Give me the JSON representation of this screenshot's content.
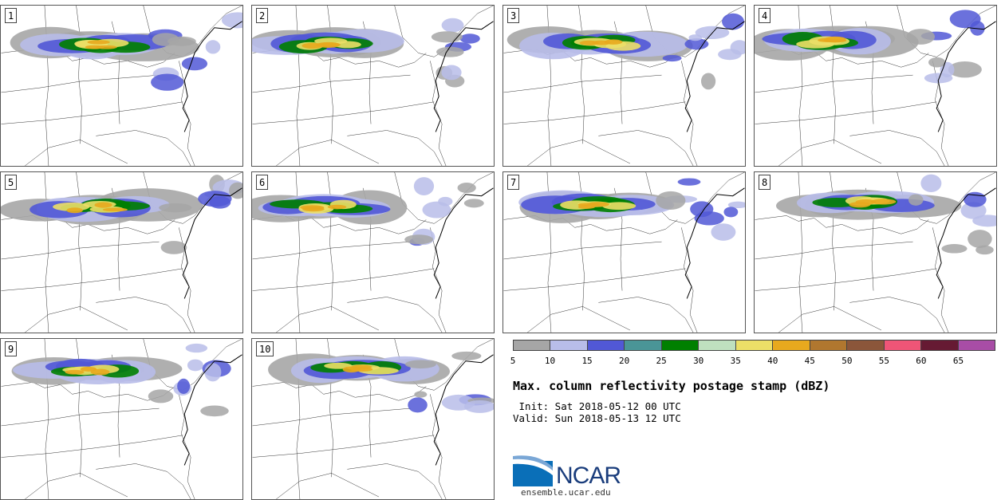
{
  "panels": [
    {
      "id": "p1",
      "label": "1"
    },
    {
      "id": "p2",
      "label": "2"
    },
    {
      "id": "p3",
      "label": "3"
    },
    {
      "id": "p4",
      "label": "4"
    },
    {
      "id": "p5",
      "label": "5"
    },
    {
      "id": "p6",
      "label": "6"
    },
    {
      "id": "p7",
      "label": "7"
    },
    {
      "id": "p8",
      "label": "8"
    },
    {
      "id": "p9",
      "label": "9"
    },
    {
      "id": "p10",
      "label": "10"
    }
  ],
  "colorbar": {
    "colors": [
      "#a6a6a6",
      "#b8bde9",
      "#5158d6",
      "#4a9597",
      "#008000",
      "#bfe0bf",
      "#ecdf67",
      "#e8a91e",
      "#b0772f",
      "#8b563a",
      "#ef5577",
      "#661a33",
      "#a84da6"
    ],
    "ticks": [
      "5",
      "10",
      "15",
      "20",
      "25",
      "30",
      "35",
      "40",
      "45",
      "50",
      "55",
      "60",
      "65"
    ]
  },
  "info": {
    "title": "Max. column reflectivity postage stamp (dBZ)",
    "init": " Init: Sat 2018-05-12 00 UTC",
    "valid": "Valid: Sun 2018-05-13 12 UTC"
  },
  "logo": {
    "text": "NCAR",
    "site": "ensemble.ucar.edu"
  }
}
